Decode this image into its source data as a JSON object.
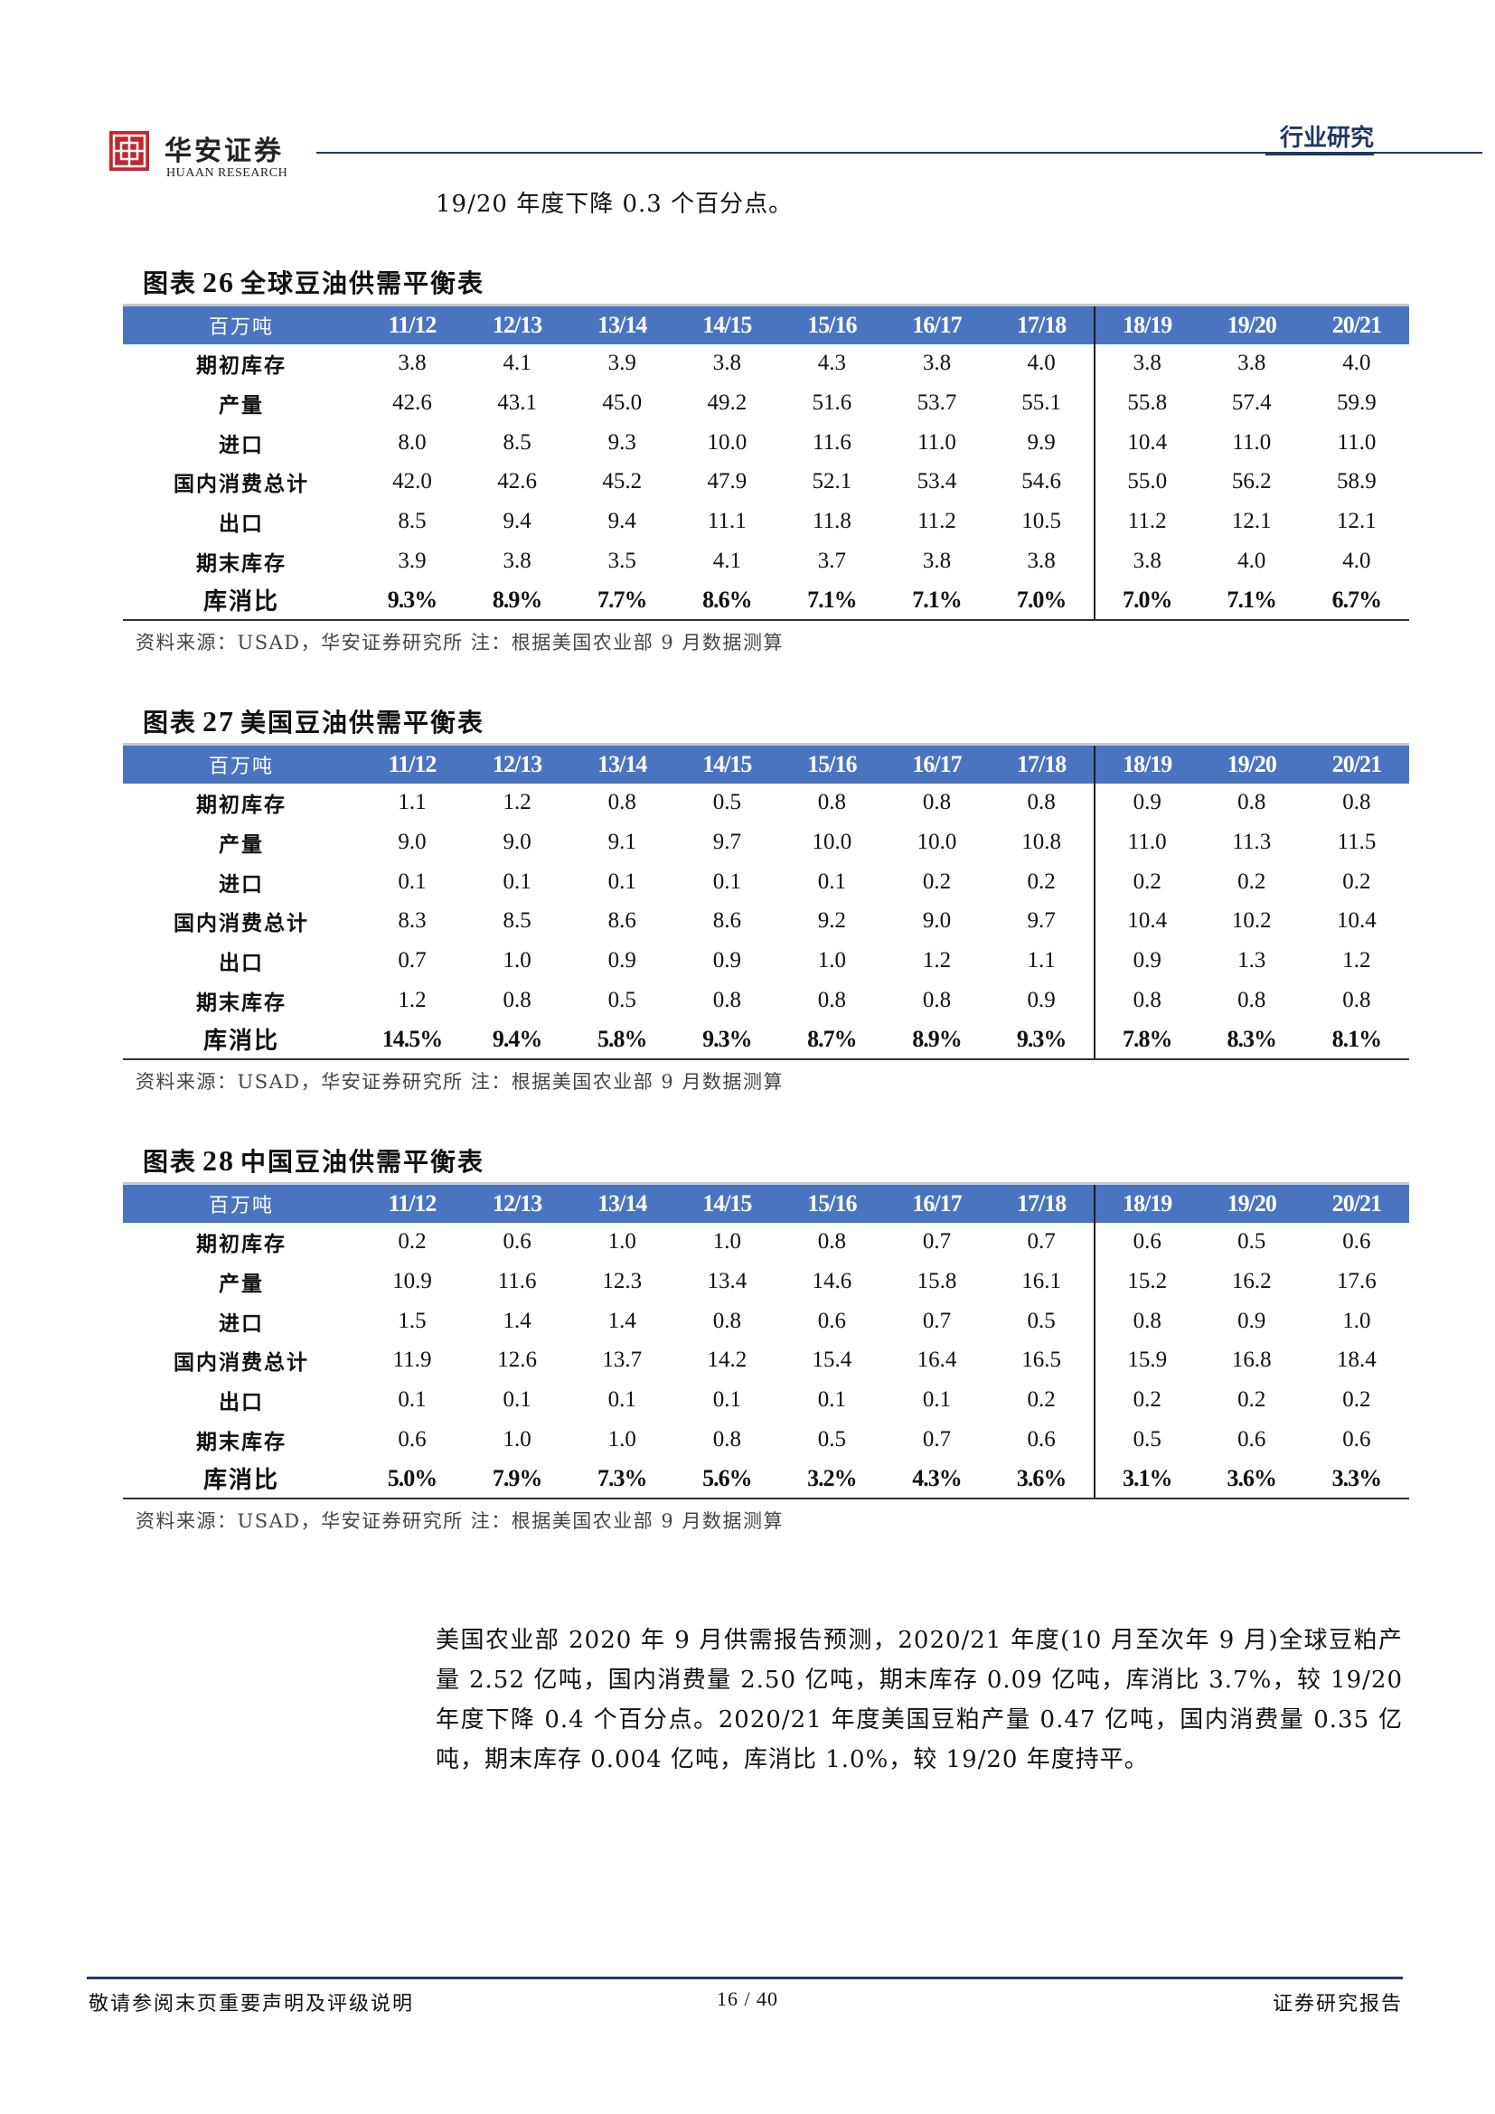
{
  "header": {
    "brand_cn": "华安证券",
    "brand_en": "HUAAN RESEARCH",
    "section": "行业研究"
  },
  "intro_line": "19/20 年度下降 0.3 个百分点。",
  "tables": [
    {
      "label": "图表",
      "number": "26",
      "title": "全球豆油供需平衡表",
      "unit": "百万吨",
      "columns": [
        "11/12",
        "12/13",
        "13/14",
        "14/15",
        "15/16",
        "16/17",
        "17/18",
        "18/19",
        "19/20",
        "20/21"
      ],
      "rows": [
        {
          "label": "期初库存",
          "values": [
            "3.8",
            "4.1",
            "3.9",
            "3.8",
            "4.3",
            "3.8",
            "4.0",
            "3.8",
            "3.8",
            "4.0"
          ]
        },
        {
          "label": "产量",
          "values": [
            "42.6",
            "43.1",
            "45.0",
            "49.2",
            "51.6",
            "53.7",
            "55.1",
            "55.8",
            "57.4",
            "59.9"
          ]
        },
        {
          "label": "进口",
          "values": [
            "8.0",
            "8.5",
            "9.3",
            "10.0",
            "11.6",
            "11.0",
            "9.9",
            "10.4",
            "11.0",
            "11.0"
          ]
        },
        {
          "label": "国内消费总计",
          "values": [
            "42.0",
            "42.6",
            "45.2",
            "47.9",
            "52.1",
            "53.4",
            "54.6",
            "55.0",
            "56.2",
            "58.9"
          ]
        },
        {
          "label": "出口",
          "values": [
            "8.5",
            "9.4",
            "9.4",
            "11.1",
            "11.8",
            "11.2",
            "10.5",
            "11.2",
            "12.1",
            "12.1"
          ]
        },
        {
          "label": "期末库存",
          "values": [
            "3.9",
            "3.8",
            "3.5",
            "4.1",
            "3.7",
            "3.8",
            "3.8",
            "3.8",
            "4.0",
            "4.0"
          ]
        },
        {
          "label": "库消比",
          "values": [
            "9.3%",
            "8.9%",
            "7.7%",
            "8.6%",
            "7.1%",
            "7.1%",
            "7.0%",
            "7.0%",
            "7.1%",
            "6.7%"
          ]
        }
      ],
      "source": "资料来源：USAD，华安证券研究所 注：根据美国农业部 9 月数据测算"
    },
    {
      "label": "图表",
      "number": "27",
      "title": "美国豆油供需平衡表",
      "unit": "百万吨",
      "columns": [
        "11/12",
        "12/13",
        "13/14",
        "14/15",
        "15/16",
        "16/17",
        "17/18",
        "18/19",
        "19/20",
        "20/21"
      ],
      "rows": [
        {
          "label": "期初库存",
          "values": [
            "1.1",
            "1.2",
            "0.8",
            "0.5",
            "0.8",
            "0.8",
            "0.8",
            "0.9",
            "0.8",
            "0.8"
          ]
        },
        {
          "label": "产量",
          "values": [
            "9.0",
            "9.0",
            "9.1",
            "9.7",
            "10.0",
            "10.0",
            "10.8",
            "11.0",
            "11.3",
            "11.5"
          ]
        },
        {
          "label": "进口",
          "values": [
            "0.1",
            "0.1",
            "0.1",
            "0.1",
            "0.1",
            "0.2",
            "0.2",
            "0.2",
            "0.2",
            "0.2"
          ]
        },
        {
          "label": "国内消费总计",
          "values": [
            "8.3",
            "8.5",
            "8.6",
            "8.6",
            "9.2",
            "9.0",
            "9.7",
            "10.4",
            "10.2",
            "10.4"
          ]
        },
        {
          "label": "出口",
          "values": [
            "0.7",
            "1.0",
            "0.9",
            "0.9",
            "1.0",
            "1.2",
            "1.1",
            "0.9",
            "1.3",
            "1.2"
          ]
        },
        {
          "label": "期末库存",
          "values": [
            "1.2",
            "0.8",
            "0.5",
            "0.8",
            "0.8",
            "0.8",
            "0.9",
            "0.8",
            "0.8",
            "0.8"
          ]
        },
        {
          "label": "库消比",
          "values": [
            "14.5%",
            "9.4%",
            "5.8%",
            "9.3%",
            "8.7%",
            "8.9%",
            "9.3%",
            "7.8%",
            "8.3%",
            "8.1%"
          ]
        }
      ],
      "source": "资料来源：USAD，华安证券研究所 注：根据美国农业部 9 月数据测算"
    },
    {
      "label": "图表",
      "number": "28",
      "title": "中国豆油供需平衡表",
      "unit": "百万吨",
      "columns": [
        "11/12",
        "12/13",
        "13/14",
        "14/15",
        "15/16",
        "16/17",
        "17/18",
        "18/19",
        "19/20",
        "20/21"
      ],
      "rows": [
        {
          "label": "期初库存",
          "values": [
            "0.2",
            "0.6",
            "1.0",
            "1.0",
            "0.8",
            "0.7",
            "0.7",
            "0.6",
            "0.5",
            "0.6"
          ]
        },
        {
          "label": "产量",
          "values": [
            "10.9",
            "11.6",
            "12.3",
            "13.4",
            "14.6",
            "15.8",
            "16.1",
            "15.2",
            "16.2",
            "17.6"
          ]
        },
        {
          "label": "进口",
          "values": [
            "1.5",
            "1.4",
            "1.4",
            "0.8",
            "0.6",
            "0.7",
            "0.5",
            "0.8",
            "0.9",
            "1.0"
          ]
        },
        {
          "label": "国内消费总计",
          "values": [
            "11.9",
            "12.6",
            "13.7",
            "14.2",
            "15.4",
            "16.4",
            "16.5",
            "15.9",
            "16.8",
            "18.4"
          ]
        },
        {
          "label": "出口",
          "values": [
            "0.1",
            "0.1",
            "0.1",
            "0.1",
            "0.1",
            "0.1",
            "0.2",
            "0.2",
            "0.2",
            "0.2"
          ]
        },
        {
          "label": "期末库存",
          "values": [
            "0.6",
            "1.0",
            "1.0",
            "0.8",
            "0.5",
            "0.7",
            "0.6",
            "0.5",
            "0.6",
            "0.6"
          ]
        },
        {
          "label": "库消比",
          "values": [
            "5.0%",
            "7.9%",
            "7.3%",
            "5.6%",
            "3.2%",
            "4.3%",
            "3.6%",
            "3.1%",
            "3.6%",
            "3.3%"
          ]
        }
      ],
      "source": "资料来源：USAD，华安证券研究所 注：根据美国农业部 9 月数据测算"
    }
  ],
  "paragraph": "美国农业部 2020 年 9 月供需报告预测，2020/21 年度(10 月至次年 9 月)全球豆粕产量 2.52 亿吨，国内消费量 2.50 亿吨，期末库存 0.09 亿吨，库消比 3.7%，较 19/20 年度下降 0.4 个百分点。2020/21 年度美国豆粕产量 0.47 亿吨，国内消费量 0.35 亿吨，期末库存 0.004 亿吨，库消比 1.0%，较 19/20 年度持平。",
  "footer": {
    "left": "敬请参阅末页重要声明及评级说明",
    "page": "16 / 40",
    "right": "证券研究报告"
  },
  "colors": {
    "table_header": "#4a74c0",
    "brand_navy": "#1f3864",
    "logo_red": "#c0282d"
  }
}
